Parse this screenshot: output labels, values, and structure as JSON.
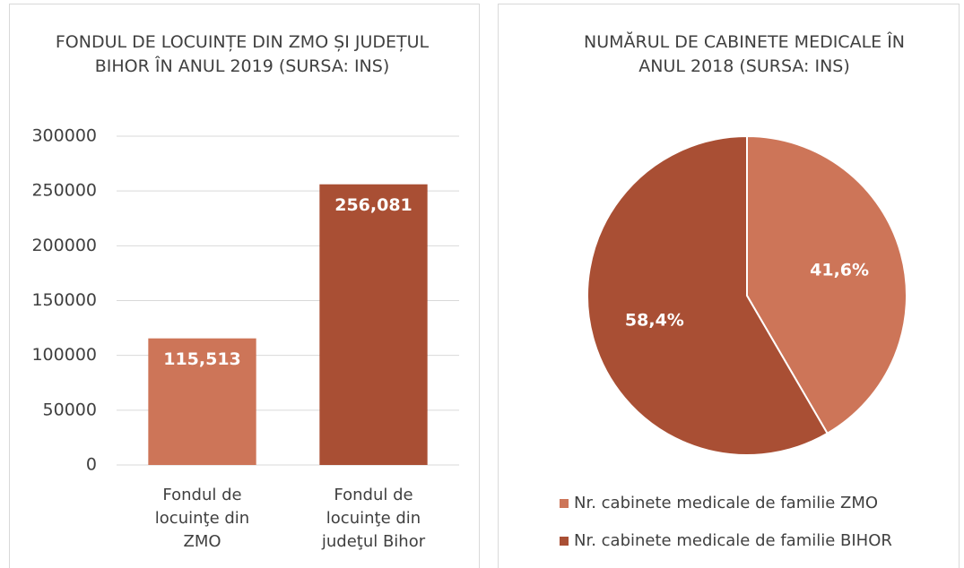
{
  "chart_data": [
    {
      "type": "bar",
      "title": "FONDUL DE LOCUINȚE DIN ZMO ȘI JUDEȚUL BIHOR ÎN ANUL 2019 (SURSA: INS)",
      "categories": [
        "Fondul de locuinţe din ZMO",
        "Fondul de locuinţe din judeţul Bihor"
      ],
      "values": [
        115513,
        256081
      ],
      "value_labels": [
        "115,513",
        "256,081"
      ],
      "colors": [
        "#cd7558",
        "#a94f34"
      ],
      "ylim": [
        0,
        300000
      ],
      "yticks": [
        0,
        50000,
        100000,
        150000,
        200000,
        250000,
        300000
      ],
      "grid": true
    },
    {
      "type": "pie",
      "title": "NUMĂRUL DE CABINETE MEDICALE ÎN ANUL 2018 (SURSA: INS)",
      "categories": [
        "Nr. cabinete medicale de familie ZMO",
        "Nr. cabinete medicale de familie BIHOR"
      ],
      "values": [
        41.6,
        58.4
      ],
      "value_labels": [
        "41,6%",
        "58,4%"
      ],
      "colors": [
        "#cd7558",
        "#a94f34"
      ],
      "legend": "bottom"
    }
  ]
}
